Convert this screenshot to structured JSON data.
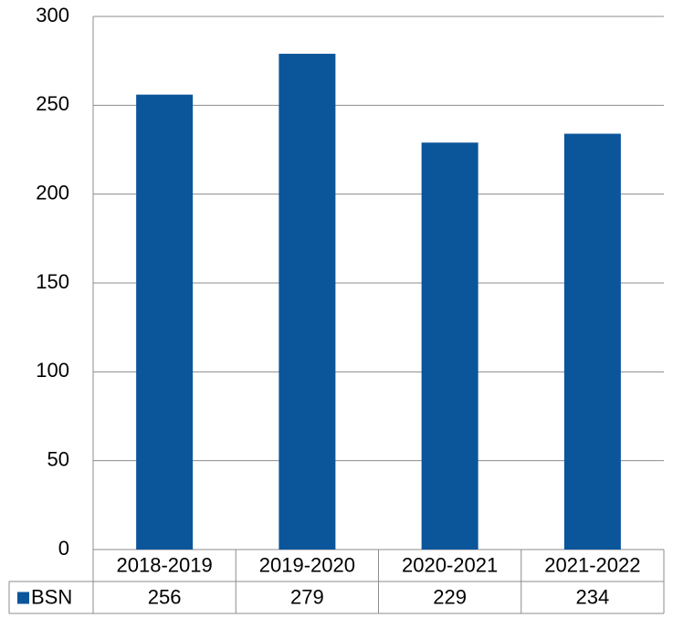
{
  "chart_data": {
    "type": "bar",
    "categories": [
      "2018-2019",
      "2019-2020",
      "2020-2021",
      "2021-2022"
    ],
    "series": [
      {
        "name": "BSN",
        "color": "#0b559b",
        "values": [
          256,
          279,
          229,
          234
        ]
      }
    ],
    "ylim": [
      0,
      300
    ],
    "yticks": [
      0,
      50,
      100,
      150,
      200,
      250,
      300
    ],
    "grid": true,
    "data_table": true
  }
}
